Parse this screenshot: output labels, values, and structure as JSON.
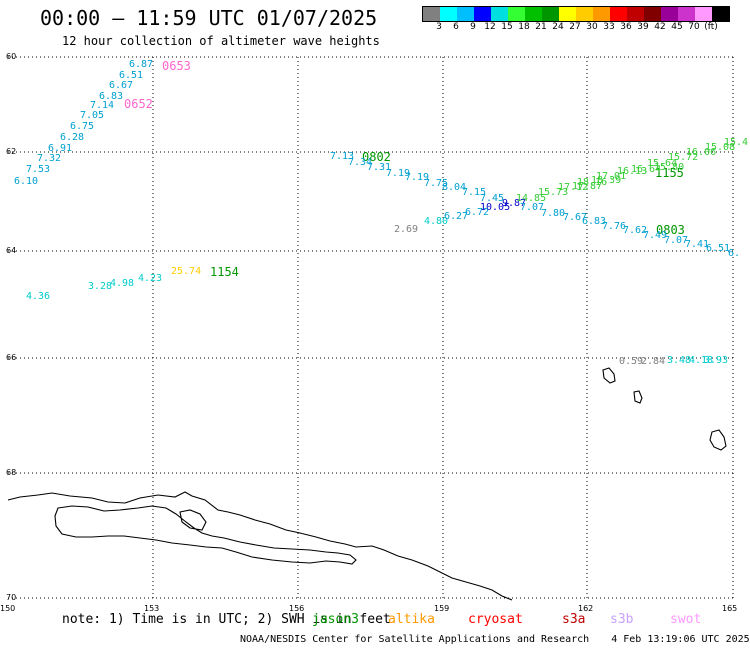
{
  "header": {
    "title": "00:00 – 11:59 UTC 01/07/2025",
    "subtitle": "12 hour collection of altimeter wave heights"
  },
  "colorbar": {
    "colors": [
      "#808080",
      "#00ffff",
      "#00bfff",
      "#0000ff",
      "#00dfdf",
      "#33ff33",
      "#00c000",
      "#009600",
      "#ffff00",
      "#ffcc00",
      "#ff9900",
      "#ff0000",
      "#c00000",
      "#800000",
      "#990099",
      "#cc33cc",
      "#ff99ff",
      "#000000"
    ],
    "labels": [
      "3",
      "6",
      "9",
      "12",
      "15",
      "18",
      "21",
      "24",
      "27",
      "30",
      "33",
      "36",
      "39",
      "42",
      "45",
      "70",
      "(ft)"
    ]
  },
  "axes": {
    "lat_ticks": [
      "60",
      "62",
      "64",
      "66",
      "68",
      "70"
    ],
    "lon_ticks": [
      "150",
      "153",
      "156",
      "159",
      "162",
      "165"
    ]
  },
  "footer": {
    "note": "note: 1) Time is in UTC; 2) SWH is in feet",
    "satellites": [
      {
        "name": "jason3",
        "color": "#009600"
      },
      {
        "name": "altika",
        "color": "#ff9900"
      },
      {
        "name": "cryosat",
        "color": "#ff0000"
      },
      {
        "name": "s3a",
        "color": "#c00000"
      },
      {
        "name": "s3b",
        "color": "#c8a0ff"
      },
      {
        "name": "swot",
        "color": "#ff99ff"
      }
    ],
    "credit": "NOAA/NESDIS Center for Satellite Applications and Research",
    "timestamp": "4 Feb 13:19:06 UTC 2025"
  },
  "passes": [
    {
      "text": "0653",
      "color": "#ff66cc"
    },
    {
      "text": "0652",
      "color": "#ff66cc"
    },
    {
      "text": "0802",
      "color": "#009600"
    },
    {
      "text": "1155",
      "color": "#009600"
    },
    {
      "text": "0803",
      "color": "#009600"
    },
    {
      "text": "1154",
      "color": "#009600"
    }
  ],
  "wave_labels": [
    {
      "text": "6.87",
      "color": "#00a0d0"
    },
    {
      "text": "6.51",
      "color": "#00a0d0"
    },
    {
      "text": "6.67",
      "color": "#00a0d0"
    },
    {
      "text": "6.83",
      "color": "#00a0d0"
    },
    {
      "text": "7.14",
      "color": "#00a0d0"
    },
    {
      "text": "7.05",
      "color": "#00a0d0"
    },
    {
      "text": "6.75",
      "color": "#00a0d0"
    },
    {
      "text": "6.28",
      "color": "#00a0d0"
    },
    {
      "text": "6.91",
      "color": "#00a0d0"
    },
    {
      "text": "7.32",
      "color": "#00a0d0"
    },
    {
      "text": "7.53",
      "color": "#00a0d0"
    },
    {
      "text": "6.10",
      "color": "#00a0d0"
    },
    {
      "text": "7.13",
      "color": "#00a0d0"
    },
    {
      "text": "7.34",
      "color": "#00a0d0"
    },
    {
      "text": "7.31",
      "color": "#00a0d0"
    },
    {
      "text": "7.19",
      "color": "#00a0d0"
    },
    {
      "text": "7.19",
      "color": "#00a0d0"
    },
    {
      "text": "7.75",
      "color": "#00a0d0"
    },
    {
      "text": "8.04",
      "color": "#00a0d0"
    },
    {
      "text": "7.15",
      "color": "#00a0d0"
    },
    {
      "text": "7.45",
      "color": "#00a0d0"
    },
    {
      "text": "10.05",
      "color": "#0000cc"
    },
    {
      "text": "9.87",
      "color": "#0000cc"
    },
    {
      "text": "7.07",
      "color": "#00a0d0"
    },
    {
      "text": "7.80",
      "color": "#00a0d0"
    },
    {
      "text": "7.67",
      "color": "#00a0d0"
    },
    {
      "text": "6.83",
      "color": "#00a0d0"
    },
    {
      "text": "7.76",
      "color": "#00a0d0"
    },
    {
      "text": "7.62",
      "color": "#00a0d0"
    },
    {
      "text": "7.49",
      "color": "#00a0d0"
    },
    {
      "text": "7.07",
      "color": "#00a0d0"
    },
    {
      "text": "7.41",
      "color": "#00a0d0"
    },
    {
      "text": "6.51",
      "color": "#00a0d0"
    },
    {
      "text": "6.",
      "color": "#00a0d0"
    },
    {
      "text": "2.69",
      "color": "#808080"
    },
    {
      "text": "4.80",
      "color": "#00cccc"
    },
    {
      "text": "6.27",
      "color": "#00a0d0"
    },
    {
      "text": "6.72",
      "color": "#00a0d0"
    },
    {
      "text": "14.85",
      "color": "#33cc33"
    },
    {
      "text": "15.73",
      "color": "#33cc33"
    },
    {
      "text": "17.12",
      "color": "#33cc33"
    },
    {
      "text": "17.87",
      "color": "#33cc33"
    },
    {
      "text": "18.16",
      "color": "#33cc33"
    },
    {
      "text": "18.39",
      "color": "#33cc33"
    },
    {
      "text": "17.01",
      "color": "#33cc33"
    },
    {
      "text": "16.13",
      "color": "#33cc33"
    },
    {
      "text": "16.64",
      "color": "#33cc33"
    },
    {
      "text": "15.64",
      "color": "#33cc33"
    },
    {
      "text": "15.80",
      "color": "#33cc33"
    },
    {
      "text": "15.72",
      "color": "#33cc33"
    },
    {
      "text": "16.06",
      "color": "#33cc33"
    },
    {
      "text": "15.08",
      "color": "#33cc33"
    },
    {
      "text": "15.4",
      "color": "#33cc33"
    },
    {
      "text": "4.36",
      "color": "#00cccc"
    },
    {
      "text": "3.28",
      "color": "#00cccc"
    },
    {
      "text": "4.98",
      "color": "#00cccc"
    },
    {
      "text": "4.23",
      "color": "#00cccc"
    },
    {
      "text": "25.74",
      "color": "#ffcc00"
    },
    {
      "text": "0.59",
      "color": "#808080"
    },
    {
      "text": "2.84",
      "color": "#808080"
    },
    {
      "text": "3.48",
      "color": "#00cccc"
    },
    {
      "text": "4.18",
      "color": "#00cccc"
    },
    {
      "text": "3.93",
      "color": "#00cccc"
    }
  ]
}
